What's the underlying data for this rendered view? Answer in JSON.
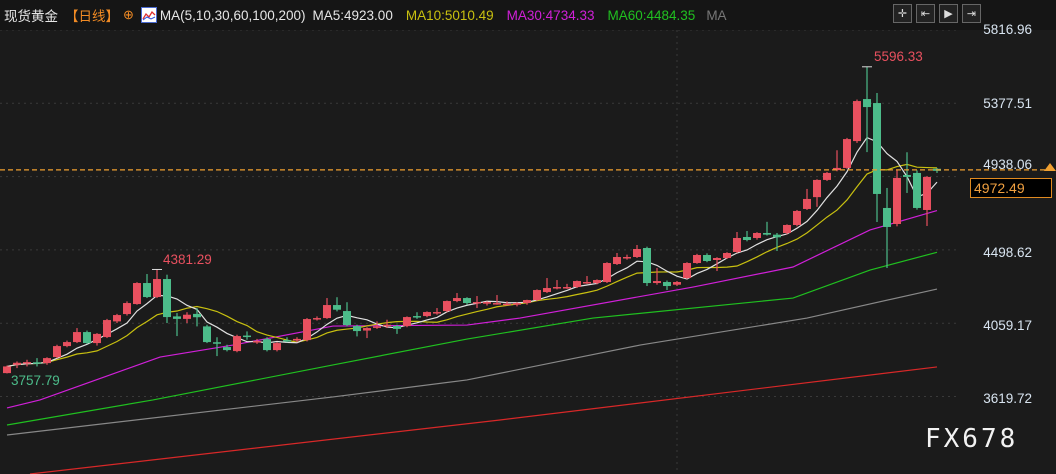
{
  "header": {
    "symbol": "现货黄金",
    "period": "【日线】",
    "ma_params": "MA(5,10,30,60,100,200)",
    "ma5": "MA5:4923.00",
    "ma10": "MA10:5010.49",
    "ma30": "MA30:4734.33",
    "ma60": "MA60:4484.35",
    "ma_more": "MA"
  },
  "toolbar": [
    "crosshair-icon",
    "zoom-range-icon",
    "play-icon",
    "exit-icon"
  ],
  "toolbar_glyphs": [
    "✛",
    "⇤",
    "▶",
    "⇥"
  ],
  "axis": {
    "labels": [
      "5816.96",
      "5377.51",
      "4938.06",
      "4498.62",
      "4059.17",
      "3619.72"
    ]
  },
  "current_price": "4972.49",
  "annotations": {
    "high": "5596.33",
    "local_high": "4381.29",
    "low": "3757.79"
  },
  "watermark": "FX678",
  "colors": {
    "up": "#e8505f",
    "down": "#4cbc8a",
    "ma5": "#e0e0e0",
    "ma10": "#c8c010",
    "ma30": "#d020d8",
    "ma60": "#20c020",
    "ma100": "#888888",
    "ma200": "#d82828",
    "current": "#f0a030"
  },
  "chart_data": {
    "type": "candlestick",
    "ohlc": [
      [
        3760,
        3805,
        3757.79,
        3800
      ],
      [
        3810,
        3830,
        3790,
        3822
      ],
      [
        3818,
        3840,
        3800,
        3826
      ],
      [
        3825,
        3850,
        3800,
        3824
      ],
      [
        3820,
        3855,
        3810,
        3850
      ],
      [
        3856,
        3930,
        3850,
        3922
      ],
      [
        3922,
        3955,
        3915,
        3946
      ],
      [
        3946,
        4030,
        3940,
        4006
      ],
      [
        4006,
        4015,
        3935,
        3940
      ],
      [
        3940,
        4000,
        3925,
        3995
      ],
      [
        3976,
        4085,
        3970,
        4078
      ],
      [
        4070,
        4115,
        4060,
        4108
      ],
      [
        4114,
        4190,
        4105,
        4180
      ],
      [
        4174,
        4305,
        4170,
        4300
      ],
      [
        4300,
        4354,
        4210,
        4216
      ],
      [
        4216,
        4381.29,
        4210,
        4324
      ],
      [
        4324,
        4350,
        4060,
        4096
      ],
      [
        4100,
        4120,
        3982,
        4085
      ],
      [
        4085,
        4125,
        4060,
        4110
      ],
      [
        4115,
        4150,
        4040,
        4095
      ],
      [
        4040,
        4050,
        3940,
        3946
      ],
      [
        3945,
        3975,
        3862,
        3940
      ],
      [
        3916,
        3930,
        3890,
        3898
      ],
      [
        3892,
        3990,
        3885,
        3982
      ],
      [
        3985,
        4010,
        3960,
        3976
      ],
      [
        3948,
        3965,
        3935,
        3952
      ],
      [
        3964,
        3975,
        3890,
        3898
      ],
      [
        3898,
        3945,
        3890,
        3940
      ],
      [
        3958,
        3975,
        3945,
        3955
      ],
      [
        3955,
        3975,
        3945,
        3965
      ],
      [
        3958,
        4090,
        3950,
        4084
      ],
      [
        4085,
        4100,
        4075,
        4090
      ],
      [
        4090,
        4210,
        4085,
        4168
      ],
      [
        4168,
        4215,
        4130,
        4140
      ],
      [
        4132,
        4185,
        4040,
        4048
      ],
      [
        4042,
        4050,
        3980,
        4012
      ],
      [
        4015,
        4035,
        3970,
        4030
      ],
      [
        4035,
        4070,
        4025,
        4040
      ],
      [
        4050,
        4080,
        4030,
        4050
      ],
      [
        4042,
        4050,
        3995,
        4025
      ],
      [
        4042,
        4100,
        4035,
        4096
      ],
      [
        4102,
        4125,
        4085,
        4096
      ],
      [
        4102,
        4130,
        4095,
        4126
      ],
      [
        4126,
        4150,
        4110,
        4126
      ],
      [
        4132,
        4195,
        4125,
        4192
      ],
      [
        4192,
        4240,
        4185,
        4210
      ],
      [
        4210,
        4215,
        4170,
        4180
      ],
      [
        4186,
        4222,
        4150,
        4186
      ],
      [
        4176,
        4190,
        4165,
        4186
      ],
      [
        4180,
        4228,
        4170,
        4180
      ],
      [
        4176,
        4190,
        4165,
        4176
      ],
      [
        4170,
        4185,
        4160,
        4180
      ],
      [
        4180,
        4200,
        4170,
        4198
      ],
      [
        4198,
        4262,
        4192,
        4258
      ],
      [
        4246,
        4330,
        4240,
        4270
      ],
      [
        4270,
        4318,
        4262,
        4276
      ],
      [
        4276,
        4295,
        4265,
        4276
      ],
      [
        4276,
        4315,
        4270,
        4312
      ],
      [
        4306,
        4342,
        4295,
        4306
      ],
      [
        4300,
        4322,
        4292,
        4318
      ],
      [
        4306,
        4425,
        4300,
        4420
      ],
      [
        4414,
        4480,
        4408,
        4456
      ],
      [
        4456,
        4470,
        4440,
        4456
      ],
      [
        4456,
        4528,
        4450,
        4504
      ],
      [
        4510,
        4518,
        4282,
        4300
      ],
      [
        4300,
        4390,
        4290,
        4312
      ],
      [
        4306,
        4315,
        4258,
        4282
      ],
      [
        4290,
        4312,
        4282,
        4306
      ],
      [
        4330,
        4425,
        4325,
        4420
      ],
      [
        4420,
        4475,
        4415,
        4468
      ],
      [
        4468,
        4478,
        4425,
        4432
      ],
      [
        4438,
        4455,
        4372,
        4450
      ],
      [
        4450,
        4485,
        4445,
        4480
      ],
      [
        4486,
        4606,
        4480,
        4570
      ],
      [
        4576,
        4612,
        4550,
        4558
      ],
      [
        4570,
        4605,
        4560,
        4600
      ],
      [
        4600,
        4667,
        4585,
        4590
      ],
      [
        4590,
        4600,
        4492,
        4574
      ],
      [
        4600,
        4652,
        4592,
        4648
      ],
      [
        4648,
        4738,
        4640,
        4732
      ],
      [
        4744,
        4864,
        4738,
        4804
      ],
      [
        4815,
        4922,
        4757,
        4918
      ],
      [
        4918,
        4966,
        4912,
        4960
      ],
      [
        4977,
        5096,
        4970,
        4990
      ],
      [
        4990,
        5170,
        4985,
        5163
      ],
      [
        5151,
        5400,
        5140,
        5391
      ],
      [
        5403,
        5596.33,
        5085,
        5355
      ],
      [
        5379,
        5439,
        4666,
        4834
      ],
      [
        4750,
        4870,
        4390,
        4636
      ],
      [
        4654,
        4978,
        4640,
        4930
      ],
      [
        4948,
        5084,
        4840,
        4936
      ],
      [
        4960,
        4975,
        4740,
        4750
      ],
      [
        4738,
        4942,
        4642,
        4936
      ],
      [
        4985,
        4990,
        4960,
        4972.49
      ]
    ],
    "moving_averages": [
      {
        "name": "MA30",
        "points": [
          [
            0,
            3551
          ],
          [
            3.3,
            3599
          ],
          [
            15.3,
            3856
          ],
          [
            22.6,
            3928
          ],
          [
            32.6,
            4042
          ],
          [
            46,
            4048
          ],
          [
            51.3,
            4090
          ],
          [
            68.6,
            4276
          ],
          [
            78.6,
            4396
          ],
          [
            86.3,
            4618
          ],
          [
            93,
            4734.33
          ]
        ]
      },
      {
        "name": "MA60",
        "points": [
          [
            0,
            3449
          ],
          [
            14.6,
            3599
          ],
          [
            32.6,
            3809
          ],
          [
            46,
            3964
          ],
          [
            58.6,
            4090
          ],
          [
            78.6,
            4210
          ],
          [
            86.3,
            4378
          ],
          [
            93,
            4484.35
          ]
        ]
      },
      {
        "name": "MA100",
        "points": [
          [
            0,
            3389
          ],
          [
            32.6,
            3617
          ],
          [
            46,
            3719
          ],
          [
            63.3,
            3928
          ],
          [
            80,
            4090
          ],
          [
            93,
            4264
          ]
        ]
      },
      {
        "name": "MA200",
        "points": [
          [
            2.3,
            3155
          ],
          [
            49.3,
            3479
          ],
          [
            93,
            3797
          ]
        ]
      }
    ],
    "ylim": [
      3400,
      5840
    ]
  }
}
